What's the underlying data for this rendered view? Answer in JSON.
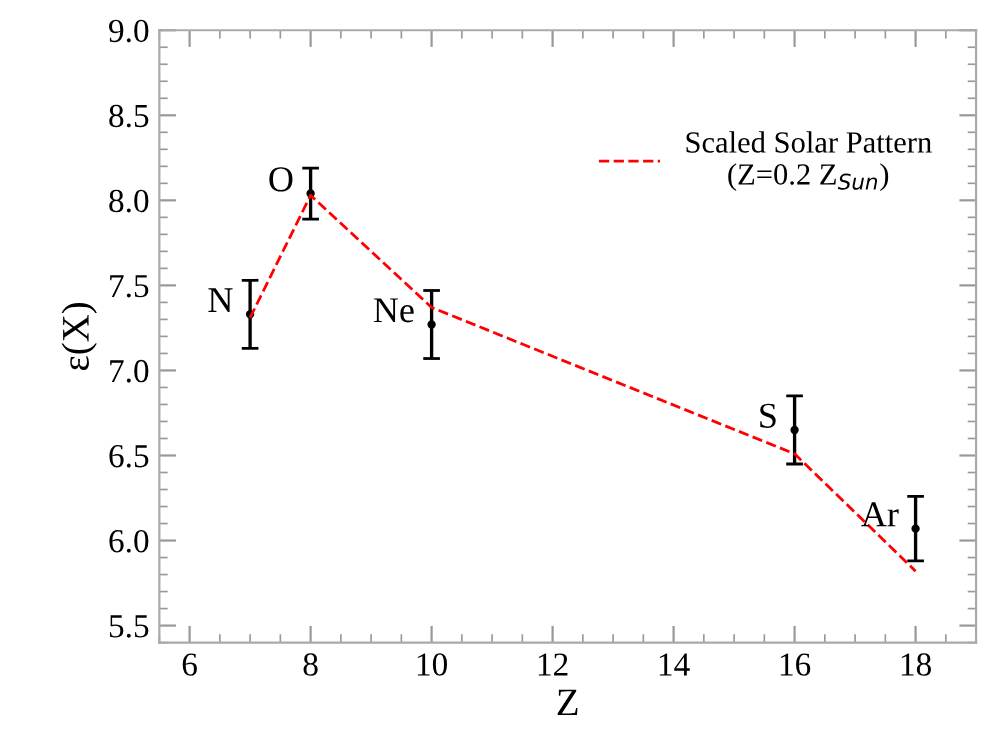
{
  "chart_data": {
    "type": "scatter",
    "xlabel": "Z",
    "ylabel": "ε(X)",
    "xlim": [
      5.5,
      19
    ],
    "ylim": [
      5.4,
      9.0
    ],
    "xticks": [
      6,
      8,
      10,
      12,
      14,
      16,
      18
    ],
    "yticks": [
      {
        "value": 5.5,
        "label": "5.5"
      },
      {
        "value": 6,
        "label": "6.0"
      },
      {
        "value": 6.5,
        "label": "6.5"
      },
      {
        "value": 7,
        "label": "7.0"
      },
      {
        "value": 7.5,
        "label": "7.5"
      },
      {
        "value": 8,
        "label": "8.0"
      },
      {
        "value": 8.5,
        "label": "8.5"
      },
      {
        "value": 9,
        "label": "9.0"
      }
    ],
    "marker": "circle",
    "legend": "top right",
    "series": [
      {
        "color": "#000000",
        "x": [
          7,
          8,
          10,
          16,
          18
        ],
        "values": [
          7.33,
          8.04,
          7.27,
          6.65,
          6.07
        ],
        "errors": [
          0.2,
          0.15,
          0.2,
          0.2,
          0.19
        ]
      },
      {
        "type": "line",
        "name": "Scaled Solar Pattern\n(Z=0.2 Z$_{Sun}$)",
        "color": "#ff0000",
        "line_style": "dashed",
        "marker": "none",
        "x": [
          7,
          8,
          10,
          16,
          18
        ],
        "values": [
          7.31,
          8.03,
          7.37,
          6.51,
          5.82
        ]
      }
    ],
    "annotations": [
      {
        "text": "N",
        "x": 7,
        "y": 7.33
      },
      {
        "text": "O",
        "x": 8,
        "y": 8.04
      },
      {
        "text": "Ne",
        "x": 10,
        "y": 7.27
      },
      {
        "text": "S",
        "x": 16,
        "y": 6.65
      },
      {
        "text": "Ar",
        "x": 18,
        "y": 6.07
      }
    ]
  }
}
